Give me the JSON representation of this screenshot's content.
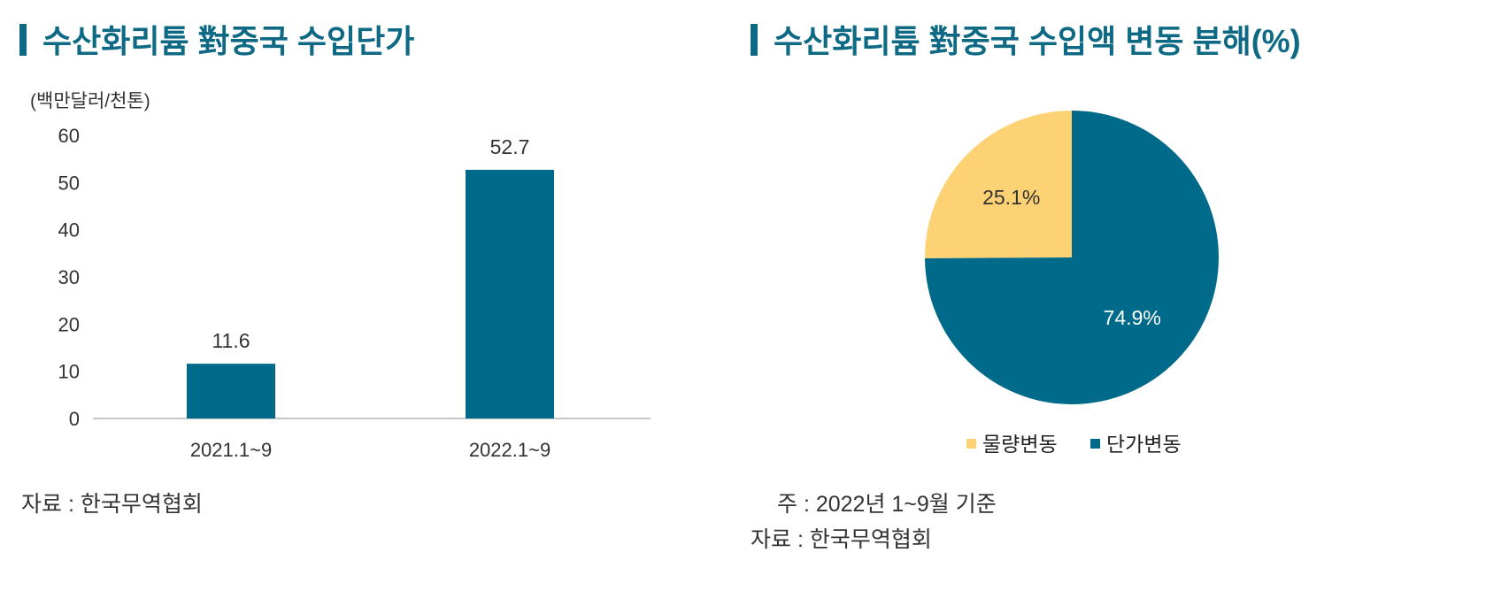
{
  "left_panel": {
    "title": "수산화리튬 對중국 수입단가",
    "source": "자료 : 한국무역협회"
  },
  "right_panel": {
    "title": "수산화리튬 對중국 수입액 변동 분해(%)",
    "note": "주 : 2022년 1~9월 기준",
    "source": "자료 : 한국무역협회"
  },
  "colors": {
    "teal": "#006a8a",
    "yellow": "#fdd274",
    "title": "#0e6a84"
  },
  "chart_data": [
    {
      "type": "bar",
      "title": "수산화리튬 對중국 수입단가",
      "ylabel": "(백만달러/천톤)",
      "categories": [
        "2021.1~9",
        "2022.1~9"
      ],
      "values": [
        11.6,
        52.7
      ],
      "value_labels": [
        "11.6",
        "52.7"
      ],
      "ylim": [
        0,
        60
      ],
      "yticks": [
        "0",
        "10",
        "20",
        "30",
        "40",
        "50",
        "60"
      ],
      "grid": false
    },
    {
      "type": "pie",
      "title": "수산화리튬 對중국 수입액 변동 분해(%)",
      "labels": [
        "물량변동",
        "단가변동"
      ],
      "values": [
        25.1,
        74.9
      ],
      "value_labels": [
        "25.1%",
        "74.9%"
      ],
      "legend": "bottom"
    }
  ]
}
